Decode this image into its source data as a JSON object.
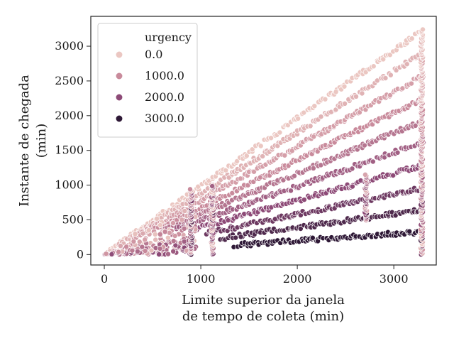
{
  "chart_data": {
    "type": "scatter",
    "xlabel": [
      "Limite superior da janela",
      "de tempo de coleta (min)"
    ],
    "ylabel": [
      "Instante de chegada",
      "(min)"
    ],
    "xlim": [
      -140,
      3440
    ],
    "ylim": [
      -150,
      3430
    ],
    "xticks": [
      0,
      1000,
      2000,
      3000
    ],
    "yticks": [
      0,
      500,
      1000,
      1500,
      2000,
      2500,
      3000
    ],
    "grid": false,
    "legend": {
      "title": "urgency",
      "placement": "top-left",
      "entries": [
        {
          "label": "0.0",
          "color": "#ebc7c2"
        },
        {
          "label": "1000.0",
          "color": "#c98b9c"
        },
        {
          "label": "2000.0",
          "color": "#8d4a77"
        },
        {
          "label": "3000.0",
          "color": "#2e1836"
        }
      ]
    },
    "hue_range": [
      0,
      3000
    ],
    "series": [
      {
        "urgency": 0,
        "x_range": [
          0,
          3300
        ],
        "slope": 0.98
      },
      {
        "urgency": 330,
        "x_range": [
          150,
          3300
        ],
        "slope": 0.88
      },
      {
        "urgency": 660,
        "x_range": [
          300,
          3300
        ],
        "slope": 0.78
      },
      {
        "urgency": 1000,
        "x_range": [
          450,
          3300
        ],
        "slope": 0.68
      },
      {
        "urgency": 1330,
        "x_range": [
          600,
          3300
        ],
        "slope": 0.585
      },
      {
        "urgency": 1660,
        "x_range": [
          750,
          3300
        ],
        "slope": 0.49
      },
      {
        "urgency": 2000,
        "x_range": [
          900,
          3300
        ],
        "slope": 0.39
      },
      {
        "urgency": 2330,
        "x_range": [
          1050,
          3300
        ],
        "slope": 0.29
      },
      {
        "urgency": 2660,
        "x_range": [
          1200,
          3300
        ],
        "slope": 0.195
      },
      {
        "urgency": 3000,
        "x_range": [
          1350,
          3300
        ],
        "slope": 0.1
      }
    ],
    "vertical_clusters": [
      {
        "x": 3290,
        "y_range": [
          0,
          3250
        ]
      },
      {
        "x": 2710,
        "y_range": [
          500,
          1150
        ]
      },
      {
        "x": 900,
        "y_range": [
          0,
          950
        ]
      },
      {
        "x": 1120,
        "y_range": [
          0,
          1000
        ]
      }
    ]
  }
}
